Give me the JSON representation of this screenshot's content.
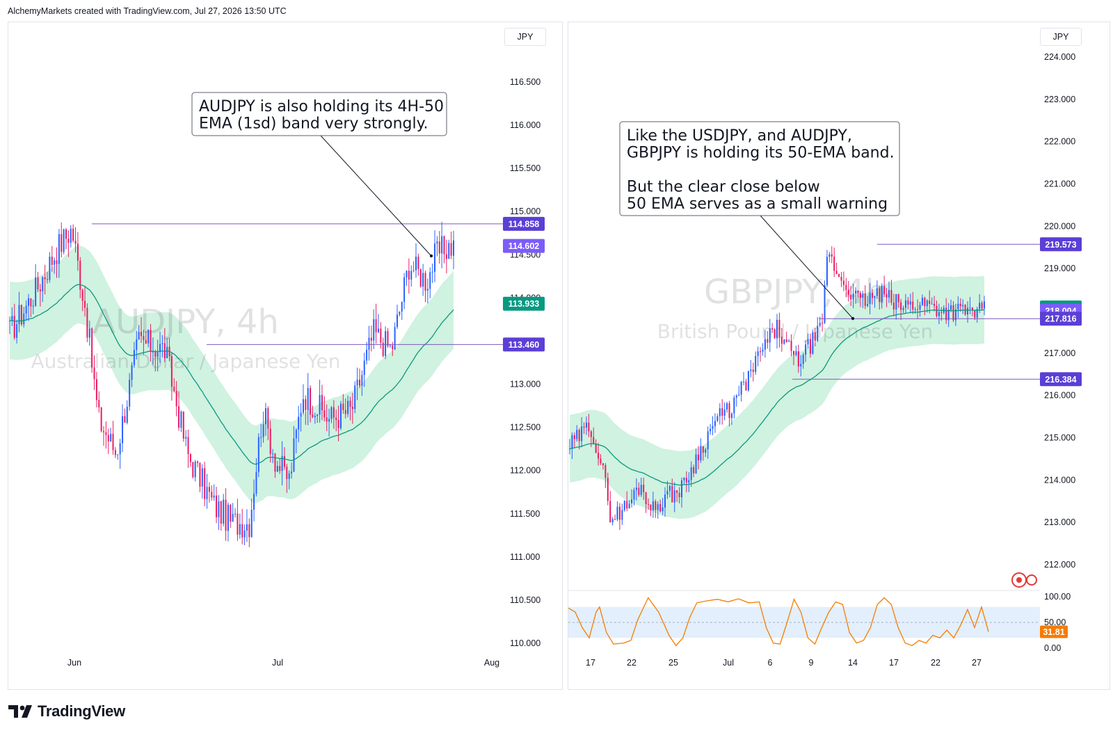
{
  "header": {
    "text": "AlchemyMarkets created with TradingView.com, Jul 27, 2026 13:50 UTC"
  },
  "footer": {
    "brand": "TradingView"
  },
  "colors": {
    "up": "#2962ff",
    "down": "#e91e63",
    "ema": "#089981",
    "band": "#c8f0da",
    "level": "#7e57c2",
    "osc": "#f57c00",
    "green_tag": "#089981"
  },
  "chart_data": [
    {
      "type": "candlestick",
      "symbol": "AUDJPY",
      "timeframe": "4h",
      "watermark_title": "AUDJPY, 4h",
      "watermark_subtitle": "Australian Dollar / Japanese Yen",
      "currency": "JPY",
      "y_ticks": [
        "110.000",
        "110.500",
        "111.000",
        "111.500",
        "112.000",
        "112.500",
        "113.000",
        "113.500",
        "114.000",
        "114.500",
        "115.000",
        "115.500",
        "116.000",
        "116.500"
      ],
      "x_ticks": [
        "Jun",
        "Jul",
        "Aug"
      ],
      "ylim": [
        110.0,
        116.5
      ],
      "price_tags": [
        {
          "label": "114.858",
          "value": 114.858,
          "color": "#5b3fd6"
        },
        {
          "label": "114.602",
          "value": 114.602,
          "color": "#7c5cfa"
        },
        {
          "label": "113.933",
          "value": 113.933,
          "color": "#089981"
        },
        {
          "label": "113.460",
          "value": 113.46,
          "color": "#5b3fd6"
        }
      ],
      "horizontal_levels": [
        114.858,
        113.46
      ],
      "annotation": {
        "lines": [
          "AUDJPY is also holding its 4H-50",
          "EMA (1sd) band very strongly."
        ]
      },
      "price_path": [
        [
          0,
          113.6
        ],
        [
          6,
          114.1
        ],
        [
          11,
          114.6
        ],
        [
          14,
          114.8
        ],
        [
          17,
          113.9
        ],
        [
          20,
          112.6
        ],
        [
          24,
          112.2
        ],
        [
          29,
          113.5
        ],
        [
          35,
          113.4
        ],
        [
          40,
          112.2
        ],
        [
          46,
          111.6
        ],
        [
          50,
          111.4
        ],
        [
          54,
          111.4
        ],
        [
          57,
          112.7
        ],
        [
          60,
          112.1
        ],
        [
          63,
          111.9
        ],
        [
          66,
          112.9
        ],
        [
          72,
          112.6
        ],
        [
          77,
          112.7
        ],
        [
          82,
          113.6
        ],
        [
          86,
          113.4
        ],
        [
          90,
          114.4
        ],
        [
          94,
          114.2
        ],
        [
          96,
          114.5
        ],
        [
          99,
          114.6
        ]
      ]
    },
    {
      "type": "candlestick",
      "symbol": "GBPJPY",
      "timeframe": "4h",
      "watermark_title": "GBPJPY, 4h",
      "watermark_subtitle": "British Pound / Japanese Yen",
      "currency": "JPY",
      "y_ticks": [
        "212.000",
        "213.000",
        "214.000",
        "215.000",
        "216.000",
        "217.000",
        "218.000",
        "219.000",
        "220.000",
        "221.000",
        "222.000",
        "223.000",
        "224.000"
      ],
      "x_ticks": [
        "17",
        "22",
        "25",
        "Jul",
        "6",
        "9",
        "14",
        "17",
        "22",
        "27"
      ],
      "ylim": [
        212.0,
        224.0
      ],
      "price_tags": [
        {
          "label": "219.573",
          "value": 219.573,
          "color": "#5b3fd6"
        },
        {
          "label": "218.080",
          "value": 218.08,
          "color": "#089981"
        },
        {
          "label": "218.004",
          "value": 218.004,
          "color": "#7c5cfa"
        },
        {
          "label": "217.816",
          "value": 217.816,
          "color": "#5b3fd6"
        },
        {
          "label": "216.384",
          "value": 216.384,
          "color": "#5b3fd6"
        }
      ],
      "horizontal_levels": [
        219.573,
        217.816,
        216.384
      ],
      "annotation": {
        "lines": [
          "Like the USDJPY, and AUDJPY,",
          "GBPJPY is holding its 50-EMA band.",
          "",
          "But the clear close below",
          "50 EMA serves as a small warning"
        ]
      },
      "price_path": [
        [
          0,
          214.8
        ],
        [
          5,
          215.3
        ],
        [
          8,
          214.2
        ],
        [
          10,
          213.1
        ],
        [
          14,
          213.4
        ],
        [
          17,
          213.9
        ],
        [
          20,
          213.3
        ],
        [
          23,
          213.6
        ],
        [
          27,
          213.8
        ],
        [
          31,
          214.6
        ],
        [
          35,
          215.4
        ],
        [
          39,
          215.7
        ],
        [
          43,
          216.4
        ],
        [
          47,
          217.2
        ],
        [
          50,
          217.6
        ],
        [
          52,
          217.2
        ],
        [
          55,
          216.8
        ],
        [
          58,
          217.2
        ],
        [
          61,
          217.6
        ],
        [
          62,
          219.4
        ],
        [
          65,
          218.8
        ],
        [
          70,
          218.2
        ],
        [
          75,
          218.4
        ],
        [
          80,
          218.1
        ],
        [
          85,
          218.2
        ],
        [
          88,
          218.1
        ],
        [
          90,
          218.0
        ]
      ]
    }
  ],
  "oscillator": {
    "type": "line",
    "y_ticks": [
      "100.00",
      "50.00",
      "0.00"
    ],
    "ylim": [
      0,
      100
    ],
    "band": [
      20,
      80
    ],
    "current": "31.81",
    "path": [
      [
        0,
        78
      ],
      [
        2,
        70
      ],
      [
        4,
        40
      ],
      [
        6,
        20
      ],
      [
        8,
        70
      ],
      [
        9,
        80
      ],
      [
        11,
        30
      ],
      [
        13,
        8
      ],
      [
        16,
        10
      ],
      [
        18,
        15
      ],
      [
        20,
        55
      ],
      [
        23,
        98
      ],
      [
        26,
        70
      ],
      [
        29,
        25
      ],
      [
        31,
        5
      ],
      [
        33,
        20
      ],
      [
        35,
        60
      ],
      [
        37,
        88
      ],
      [
        40,
        92
      ],
      [
        43,
        95
      ],
      [
        46,
        90
      ],
      [
        49,
        96
      ],
      [
        52,
        88
      ],
      [
        55,
        90
      ],
      [
        57,
        40
      ],
      [
        59,
        10
      ],
      [
        61,
        8
      ],
      [
        63,
        50
      ],
      [
        65,
        95
      ],
      [
        67,
        70
      ],
      [
        69,
        20
      ],
      [
        71,
        8
      ],
      [
        73,
        40
      ],
      [
        75,
        70
      ],
      [
        77,
        90
      ],
      [
        79,
        85
      ],
      [
        81,
        30
      ],
      [
        83,
        10
      ],
      [
        85,
        15
      ],
      [
        87,
        40
      ],
      [
        89,
        85
      ],
      [
        91,
        98
      ],
      [
        93,
        85
      ],
      [
        95,
        40
      ],
      [
        97,
        10
      ],
      [
        99,
        5
      ],
      [
        101,
        15
      ],
      [
        103,
        10
      ],
      [
        105,
        25
      ],
      [
        107,
        20
      ],
      [
        109,
        35
      ],
      [
        111,
        20
      ],
      [
        113,
        45
      ],
      [
        115,
        75
      ],
      [
        117,
        40
      ],
      [
        119,
        80
      ],
      [
        121,
        32
      ]
    ]
  }
}
